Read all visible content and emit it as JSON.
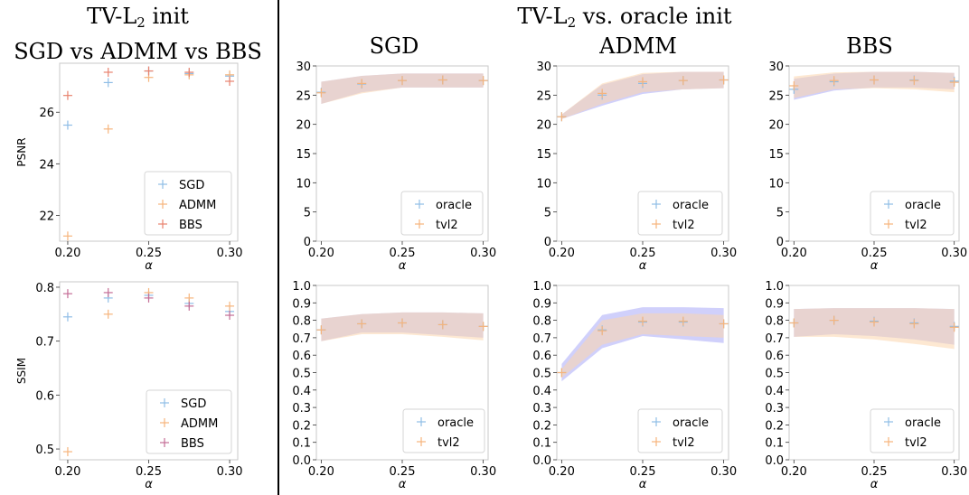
{
  "titles": {
    "left_line1_pre": "TV-L",
    "left_line1_sub": "2",
    "left_line1_post": " init",
    "left_line2": "SGD vs ADMM vs BBS",
    "right_line1_pre": "TV-L",
    "right_line1_sub": "2",
    "right_line1_post": " vs. oracle init",
    "col_sgd": "SGD",
    "col_admm": "ADMM",
    "col_bbs": "BBS"
  },
  "colors": {
    "sgd": "#8fbde6",
    "admm": "#f6b47c",
    "bbs": "#e8826e",
    "bbs_ssim": "#c46d96",
    "oracle_marker": "#8fbde6",
    "tvl2_marker": "#f6b47c",
    "oracle_band": "#a9a9f7",
    "tvl2_band": "#fbd5ad",
    "overlap_band": "#e0d4df"
  },
  "chart_data": [
    {
      "id": "left-psnr",
      "type": "scatter",
      "title": "",
      "xlabel": "α",
      "ylabel": "PSNR",
      "xlim": [
        0.195,
        0.305
      ],
      "ylim": [
        21.0,
        27.9
      ],
      "xticks": [
        "0.20",
        "0.25",
        "0.30"
      ],
      "xtick_values": [
        0.2,
        0.25,
        0.3
      ],
      "yticks": [
        "22",
        "24",
        "26"
      ],
      "ytick_values": [
        22,
        24,
        26
      ],
      "legend_position": "lower-right",
      "x": [
        0.2,
        0.225,
        0.25,
        0.275,
        0.3
      ],
      "series": [
        {
          "name": "SGD",
          "color": "#8fbde6",
          "values": [
            25.5,
            27.15,
            27.6,
            27.5,
            27.4
          ]
        },
        {
          "name": "ADMM",
          "color": "#f6b47c",
          "values": [
            21.2,
            25.35,
            27.35,
            27.45,
            27.45
          ]
        },
        {
          "name": "BBS",
          "color": "#e8826e",
          "values": [
            26.65,
            27.55,
            27.6,
            27.55,
            27.2
          ]
        }
      ]
    },
    {
      "id": "left-ssim",
      "type": "scatter",
      "title": "",
      "xlabel": "α",
      "ylabel": "SSIM",
      "xlim": [
        0.195,
        0.305
      ],
      "ylim": [
        0.48,
        0.81
      ],
      "xticks": [
        "0.20",
        "0.25",
        "0.30"
      ],
      "xtick_values": [
        0.2,
        0.25,
        0.3
      ],
      "yticks": [
        "0.5",
        "0.6",
        "0.7",
        "0.8"
      ],
      "ytick_values": [
        0.5,
        0.6,
        0.7,
        0.8
      ],
      "legend_position": "lower-right",
      "x": [
        0.2,
        0.225,
        0.25,
        0.275,
        0.3
      ],
      "series": [
        {
          "name": "SGD",
          "color": "#8fbde6",
          "values": [
            0.745,
            0.78,
            0.785,
            0.77,
            0.755
          ]
        },
        {
          "name": "ADMM",
          "color": "#f6b47c",
          "values": [
            0.495,
            0.75,
            0.79,
            0.78,
            0.765
          ]
        },
        {
          "name": "BBS",
          "color": "#c46d96",
          "values": [
            0.788,
            0.79,
            0.78,
            0.765,
            0.748
          ]
        }
      ]
    },
    {
      "id": "sgd-psnr",
      "type": "scatter",
      "title": "SGD",
      "xlabel": "α",
      "ylabel": "",
      "xlim": [
        0.197,
        0.303
      ],
      "ylim": [
        0,
        30
      ],
      "xticks": [
        "0.20",
        "0.25",
        "0.30"
      ],
      "xtick_values": [
        0.2,
        0.25,
        0.3
      ],
      "yticks": [
        "0",
        "5",
        "10",
        "15",
        "20",
        "25",
        "30"
      ],
      "ytick_values": [
        0,
        5,
        10,
        15,
        20,
        25,
        30
      ],
      "legend_position": "lower-right",
      "x": [
        0.2,
        0.225,
        0.25,
        0.275,
        0.3
      ],
      "series": [
        {
          "name": "oracle",
          "color": "#8fbde6",
          "values": [
            25.5,
            26.9,
            27.5,
            27.6,
            27.5
          ],
          "band_low": [
            23.5,
            25.5,
            26.3,
            26.3,
            26.3
          ],
          "band_high": [
            27.3,
            28.3,
            28.7,
            28.7,
            28.7
          ]
        },
        {
          "name": "tvl2",
          "color": "#f6b47c",
          "values": [
            25.4,
            27.0,
            27.5,
            27.6,
            27.5
          ],
          "band_low": [
            23.5,
            25.3,
            26.3,
            26.3,
            26.3
          ],
          "band_high": [
            27.3,
            28.3,
            28.7,
            28.7,
            28.7
          ]
        }
      ]
    },
    {
      "id": "admm-psnr",
      "type": "scatter",
      "title": "ADMM",
      "xlabel": "α",
      "ylabel": "",
      "xlim": [
        0.197,
        0.303
      ],
      "ylim": [
        0,
        30
      ],
      "xticks": [
        "0.20",
        "0.25",
        "0.30"
      ],
      "xtick_values": [
        0.2,
        0.25,
        0.3
      ],
      "yticks": [
        "0",
        "5",
        "10",
        "15",
        "20",
        "25",
        "30"
      ],
      "ytick_values": [
        0,
        5,
        10,
        15,
        20,
        25,
        30
      ],
      "legend_position": "lower-right",
      "x": [
        0.2,
        0.225,
        0.25,
        0.275,
        0.3
      ],
      "series": [
        {
          "name": "oracle",
          "color": "#8fbde6",
          "values": [
            21.3,
            25.0,
            27.0,
            27.5,
            27.6
          ],
          "band_low": [
            20.9,
            23.2,
            25.2,
            26.0,
            26.2
          ],
          "band_high": [
            21.7,
            26.8,
            28.6,
            29.0,
            29.0
          ]
        },
        {
          "name": "tvl2",
          "color": "#f6b47c",
          "values": [
            21.3,
            25.3,
            27.3,
            27.5,
            27.6
          ],
          "band_low": [
            20.9,
            23.5,
            25.5,
            26.0,
            26.2
          ],
          "band_high": [
            21.7,
            27.0,
            28.8,
            29.0,
            29.0
          ]
        }
      ]
    },
    {
      "id": "bbs-psnr",
      "type": "scatter",
      "title": "BBS",
      "xlabel": "α",
      "ylabel": "",
      "xlim": [
        0.197,
        0.303
      ],
      "ylim": [
        0,
        30
      ],
      "xticks": [
        "0.20",
        "0.25",
        "0.30"
      ],
      "xtick_values": [
        0.2,
        0.25,
        0.3
      ],
      "yticks": [
        "0",
        "5",
        "10",
        "15",
        "20",
        "25",
        "30"
      ],
      "ytick_values": [
        0,
        5,
        10,
        15,
        20,
        25,
        30
      ],
      "legend_position": "lower-right",
      "x": [
        0.2,
        0.225,
        0.25,
        0.275,
        0.3
      ],
      "series": [
        {
          "name": "oracle",
          "color": "#8fbde6",
          "values": [
            26.0,
            27.3,
            27.6,
            27.6,
            27.4
          ],
          "band_low": [
            24.2,
            25.8,
            26.3,
            26.3,
            26.0
          ],
          "band_high": [
            27.8,
            28.7,
            29.0,
            29.0,
            28.8
          ]
        },
        {
          "name": "tvl2",
          "color": "#f6b47c",
          "values": [
            26.6,
            27.5,
            27.6,
            27.5,
            27.2
          ],
          "band_low": [
            24.5,
            26.0,
            26.2,
            26.0,
            25.5
          ],
          "band_high": [
            28.2,
            28.9,
            29.0,
            29.0,
            28.8
          ]
        }
      ]
    },
    {
      "id": "sgd-ssim",
      "type": "scatter",
      "title": "",
      "xlabel": "α",
      "ylabel": "",
      "xlim": [
        0.197,
        0.303
      ],
      "ylim": [
        0,
        1.0
      ],
      "xticks": [
        "0.20",
        "0.25",
        "0.30"
      ],
      "xtick_values": [
        0.2,
        0.25,
        0.3
      ],
      "yticks": [
        "0.0",
        "0.1",
        "0.2",
        "0.3",
        "0.4",
        "0.5",
        "0.6",
        "0.7",
        "0.8",
        "0.9",
        "1.0"
      ],
      "ytick_values": [
        0,
        0.1,
        0.2,
        0.3,
        0.4,
        0.5,
        0.6,
        0.7,
        0.8,
        0.9,
        1.0
      ],
      "legend_position": "lower-right",
      "x": [
        0.2,
        0.225,
        0.25,
        0.275,
        0.3
      ],
      "series": [
        {
          "name": "oracle",
          "color": "#8fbde6",
          "values": [
            0.745,
            0.78,
            0.785,
            0.775,
            0.765
          ],
          "band_low": [
            0.68,
            0.73,
            0.73,
            0.715,
            0.7
          ],
          "band_high": [
            0.81,
            0.835,
            0.845,
            0.845,
            0.84
          ]
        },
        {
          "name": "tvl2",
          "color": "#f6b47c",
          "values": [
            0.745,
            0.78,
            0.785,
            0.775,
            0.765
          ],
          "band_low": [
            0.68,
            0.72,
            0.72,
            0.705,
            0.685
          ],
          "band_high": [
            0.81,
            0.835,
            0.845,
            0.845,
            0.84
          ]
        }
      ]
    },
    {
      "id": "admm-ssim",
      "type": "scatter",
      "title": "",
      "xlabel": "α",
      "ylabel": "",
      "xlim": [
        0.197,
        0.303
      ],
      "ylim": [
        0,
        1.0
      ],
      "xticks": [
        "0.20",
        "0.25",
        "0.30"
      ],
      "xtick_values": [
        0.2,
        0.25,
        0.3
      ],
      "yticks": [
        "0.0",
        "0.1",
        "0.2",
        "0.3",
        "0.4",
        "0.5",
        "0.6",
        "0.7",
        "0.8",
        "0.9",
        "1.0"
      ],
      "ytick_values": [
        0,
        0.1,
        0.2,
        0.3,
        0.4,
        0.5,
        0.6,
        0.7,
        0.8,
        0.9,
        1.0
      ],
      "legend_position": "lower-right",
      "x": [
        0.2,
        0.225,
        0.25,
        0.275,
        0.3
      ],
      "series": [
        {
          "name": "oracle",
          "color": "#8fbde6",
          "values": [
            0.5,
            0.745,
            0.79,
            0.79,
            0.78
          ],
          "band_low": [
            0.45,
            0.64,
            0.71,
            0.69,
            0.67
          ],
          "band_high": [
            0.55,
            0.83,
            0.875,
            0.875,
            0.87
          ]
        },
        {
          "name": "tvl2",
          "color": "#f6b47c",
          "values": [
            0.5,
            0.74,
            0.795,
            0.795,
            0.78
          ],
          "band_low": [
            0.47,
            0.66,
            0.72,
            0.71,
            0.7
          ],
          "band_high": [
            0.52,
            0.8,
            0.84,
            0.84,
            0.83
          ]
        }
      ]
    },
    {
      "id": "bbs-ssim",
      "type": "scatter",
      "title": "",
      "xlabel": "α",
      "ylabel": "",
      "xlim": [
        0.197,
        0.303
      ],
      "ylim": [
        0,
        1.0
      ],
      "xticks": [
        "0.20",
        "0.25",
        "0.30"
      ],
      "xtick_values": [
        0.2,
        0.25,
        0.3
      ],
      "yticks": [
        "0.0",
        "0.1",
        "0.2",
        "0.3",
        "0.4",
        "0.5",
        "0.6",
        "0.7",
        "0.8",
        "0.9",
        "1.0"
      ],
      "ytick_values": [
        0,
        0.1,
        0.2,
        0.3,
        0.4,
        0.5,
        0.6,
        0.7,
        0.8,
        0.9,
        1.0
      ],
      "legend_position": "lower-right",
      "x": [
        0.2,
        0.225,
        0.25,
        0.275,
        0.3
      ],
      "series": [
        {
          "name": "oracle",
          "color": "#8fbde6",
          "values": [
            0.785,
            0.8,
            0.795,
            0.785,
            0.765
          ],
          "band_low": [
            0.705,
            0.72,
            0.71,
            0.69,
            0.66
          ],
          "band_high": [
            0.865,
            0.87,
            0.87,
            0.87,
            0.865
          ]
        },
        {
          "name": "tvl2",
          "color": "#f6b47c",
          "values": [
            0.785,
            0.8,
            0.79,
            0.78,
            0.76
          ],
          "band_low": [
            0.705,
            0.705,
            0.69,
            0.665,
            0.635
          ],
          "band_high": [
            0.865,
            0.87,
            0.87,
            0.87,
            0.865
          ]
        }
      ]
    }
  ]
}
